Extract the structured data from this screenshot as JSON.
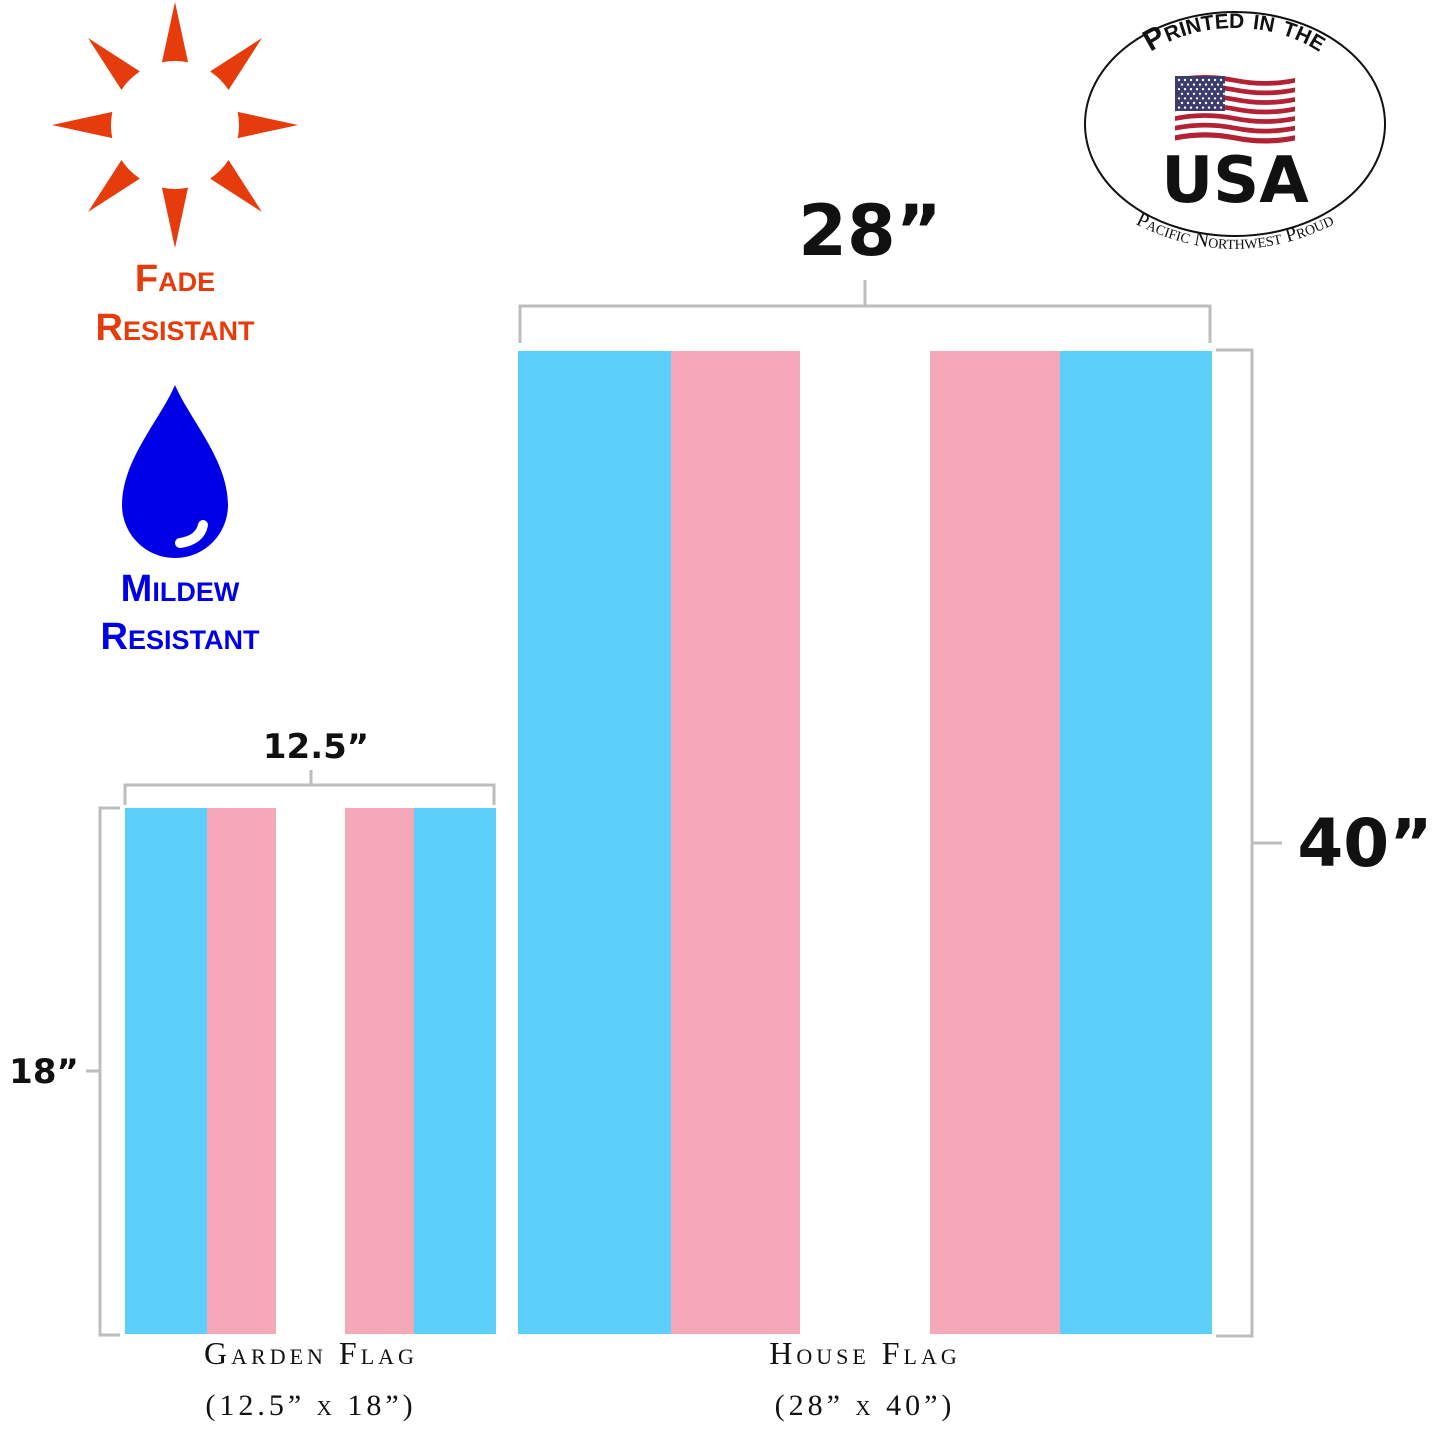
{
  "colors": {
    "flag_blue": "#5BCEFA",
    "flag_pink": "#F5A9B8",
    "flag_white": "#FFFFFF",
    "fade": "#E63B0A",
    "mildew": "#0000E6",
    "bracket": "#BDBDBD"
  },
  "features": [
    {
      "icon": "sun-icon",
      "line1": "Fade",
      "line2": "Resistant"
    },
    {
      "icon": "water-drop-icon",
      "line1": "Mildew",
      "line2": "Resistant"
    }
  ],
  "badge": {
    "top_text": "Printed in the",
    "main_text": "USA",
    "bottom_text": "Pacific Northwest Proud",
    "icon": "us-flag-icon"
  },
  "garden_flag": {
    "width_label": "12.5”",
    "height_label": "18”",
    "name": "Garden Flag",
    "size": "(12.5” x 18”)"
  },
  "house_flag": {
    "width_label": "28”",
    "height_label": "40”",
    "name": "House Flag",
    "size": "(28” x 40”)"
  }
}
